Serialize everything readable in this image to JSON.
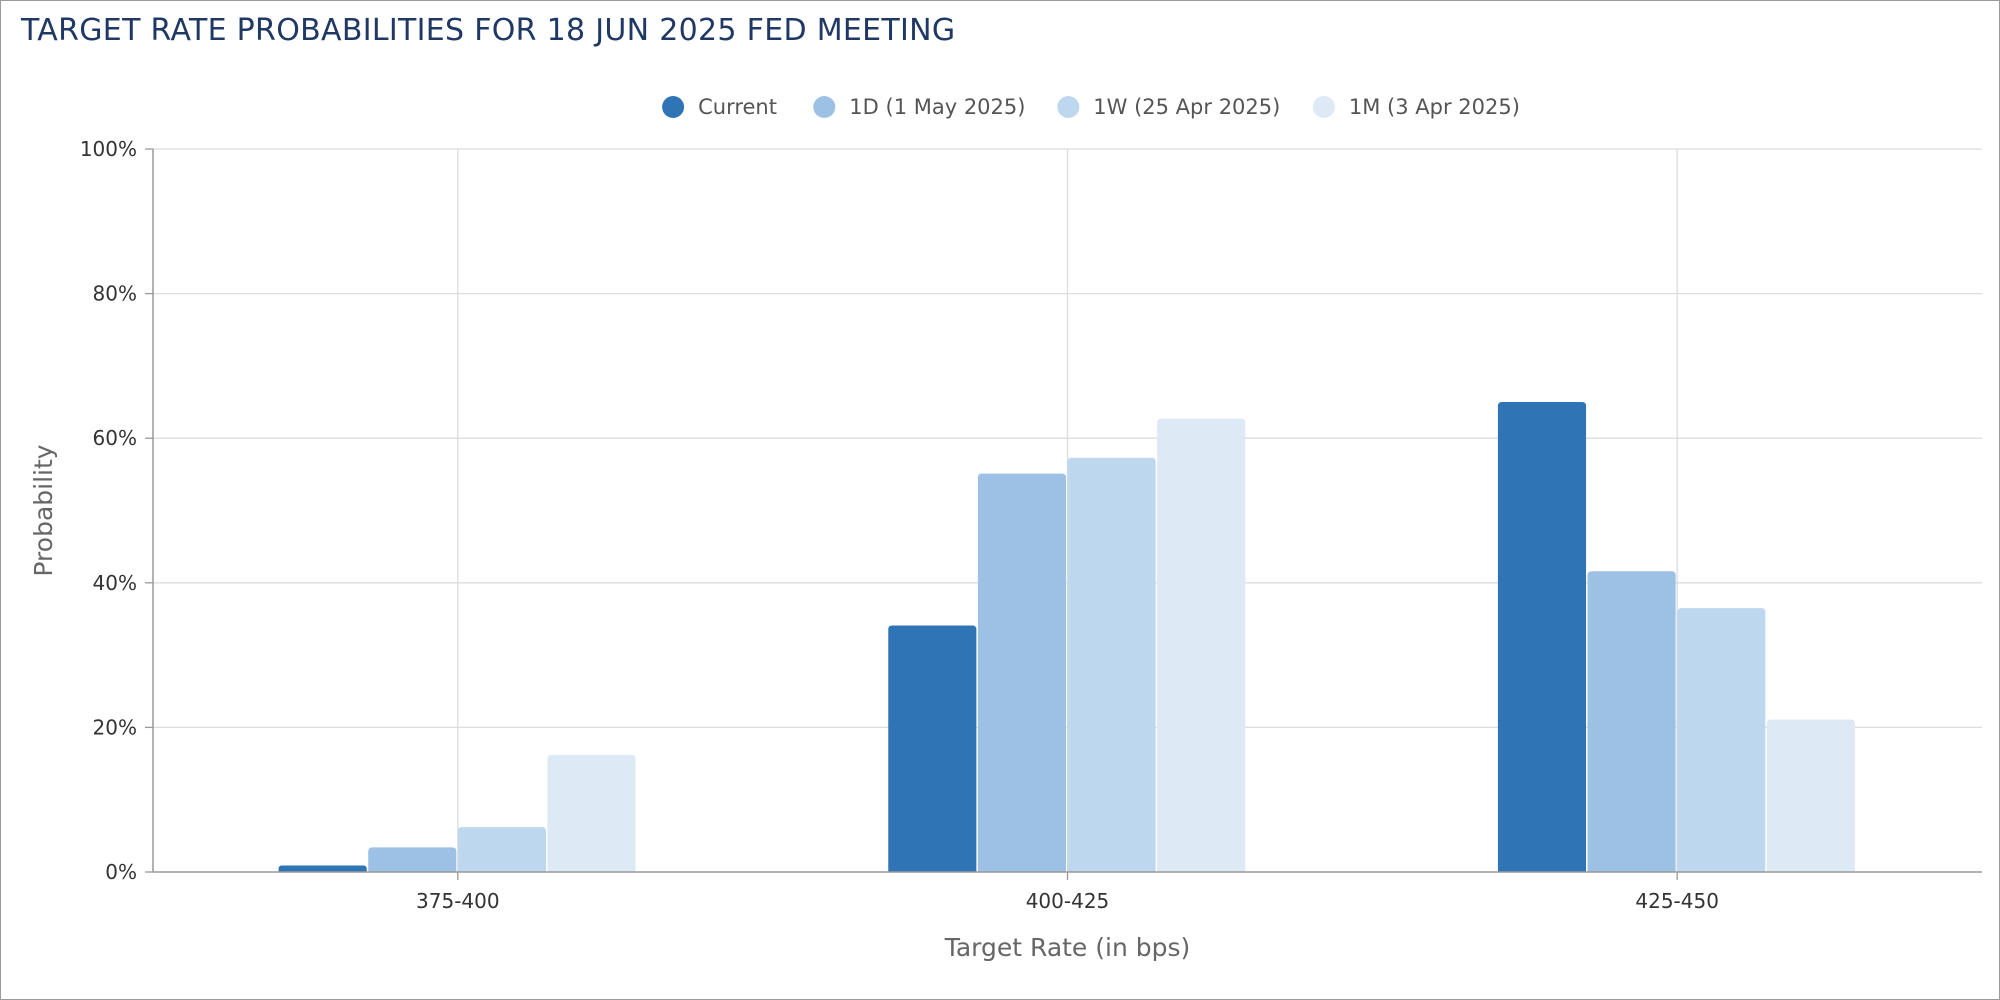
{
  "chart_data": {
    "type": "bar",
    "title": "TARGET RATE PROBABILITIES FOR 18 JUN 2025 FED MEETING",
    "xlabel": "Target Rate (in bps)",
    "ylabel": "Probability",
    "categories": [
      "375-400",
      "400-425",
      "425-450"
    ],
    "ylim": [
      0,
      100
    ],
    "yticks": [
      0,
      20,
      40,
      60,
      80,
      100
    ],
    "ytick_labels": [
      "0%",
      "20%",
      "40%",
      "60%",
      "80%",
      "100%"
    ],
    "grid": true,
    "legend_position": "top-center",
    "series": [
      {
        "name": "Current",
        "color": "#2f74b5",
        "values": [
          0.9,
          34.1,
          65.0
        ]
      },
      {
        "name": "1D (1 May 2025)",
        "color": "#9dc1e5",
        "values": [
          3.4,
          55.1,
          41.6
        ]
      },
      {
        "name": "1W (25 Apr 2025)",
        "color": "#bdd7ee",
        "values": [
          6.2,
          57.3,
          36.5
        ]
      },
      {
        "name": "1M (3 Apr 2025)",
        "color": "#ddeaf6",
        "values": [
          16.2,
          62.7,
          21.1
        ]
      }
    ]
  }
}
